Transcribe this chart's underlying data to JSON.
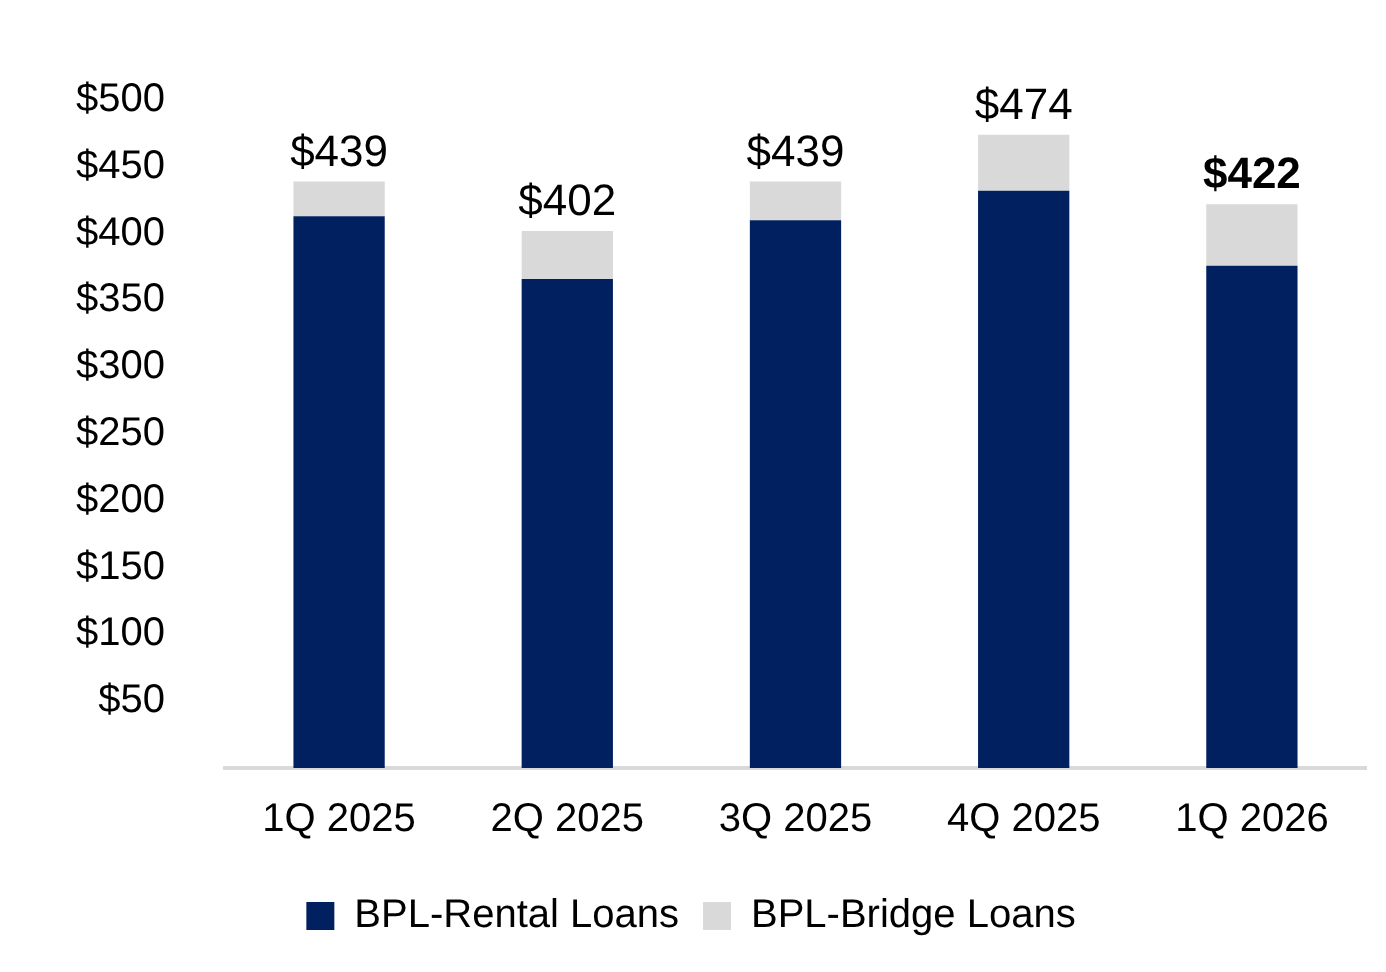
{
  "chart_data": {
    "type": "bar",
    "stacked": true,
    "categories": [
      "1Q 2025",
      "2Q 2025",
      "3Q 2025",
      "4Q 2025",
      "1Q 2026"
    ],
    "series": [
      {
        "name": "BPL-Rental Loans",
        "color": "#002060",
        "values": [
          413,
          366,
          410,
          432,
          376
        ]
      },
      {
        "name": "BPL-Bridge Loans",
        "color": "#d9d9d9",
        "values": [
          26,
          36,
          29,
          42,
          46
        ]
      }
    ],
    "totals": [
      "$439",
      "$402",
      "$439",
      "$474",
      "$422"
    ],
    "ylim": [
      0,
      500
    ],
    "yticks": [
      {
        "value": 50,
        "label": "$50"
      },
      {
        "value": 100,
        "label": "$100"
      },
      {
        "value": 150,
        "label": "$150"
      },
      {
        "value": 200,
        "label": "$200"
      },
      {
        "value": 250,
        "label": "$250"
      },
      {
        "value": 300,
        "label": "$300"
      },
      {
        "value": 350,
        "label": "$350"
      },
      {
        "value": 400,
        "label": "$400"
      },
      {
        "value": 450,
        "label": "$450"
      },
      {
        "value": 500,
        "label": "$500"
      }
    ],
    "grid": false,
    "legend": "bottom"
  }
}
